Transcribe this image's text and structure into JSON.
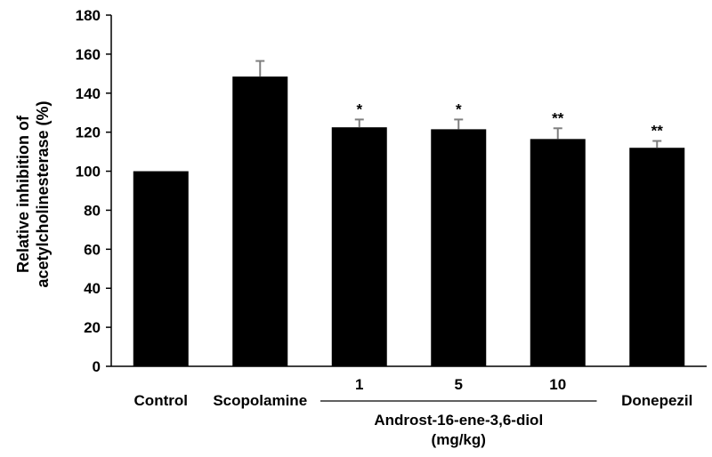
{
  "chart_data": {
    "type": "bar",
    "title": "",
    "xlabel": "",
    "ylabel": [
      "Relative inhibition of",
      "acetylcholinesterase (%)"
    ],
    "ylim": [
      0,
      180
    ],
    "yticks": [
      0,
      20,
      40,
      60,
      80,
      100,
      120,
      140,
      160,
      180
    ],
    "categories": [
      "Control",
      "Scopolamine",
      "1",
      "5",
      "10",
      "Donepezil"
    ],
    "values": [
      100,
      148.5,
      122.5,
      121.5,
      116.5,
      112
    ],
    "errors": [
      0.5,
      8,
      4,
      5,
      5.5,
      3.5
    ],
    "significance": [
      "",
      "",
      "*",
      "*",
      "**",
      "**"
    ],
    "group_label": {
      "lines": [
        "Androst-16-ene-3,6-diol",
        "(mg/kg)"
      ],
      "covers": [
        2,
        3,
        4
      ]
    },
    "bar_color": "#000000",
    "error_color": "#7f7f7f"
  }
}
